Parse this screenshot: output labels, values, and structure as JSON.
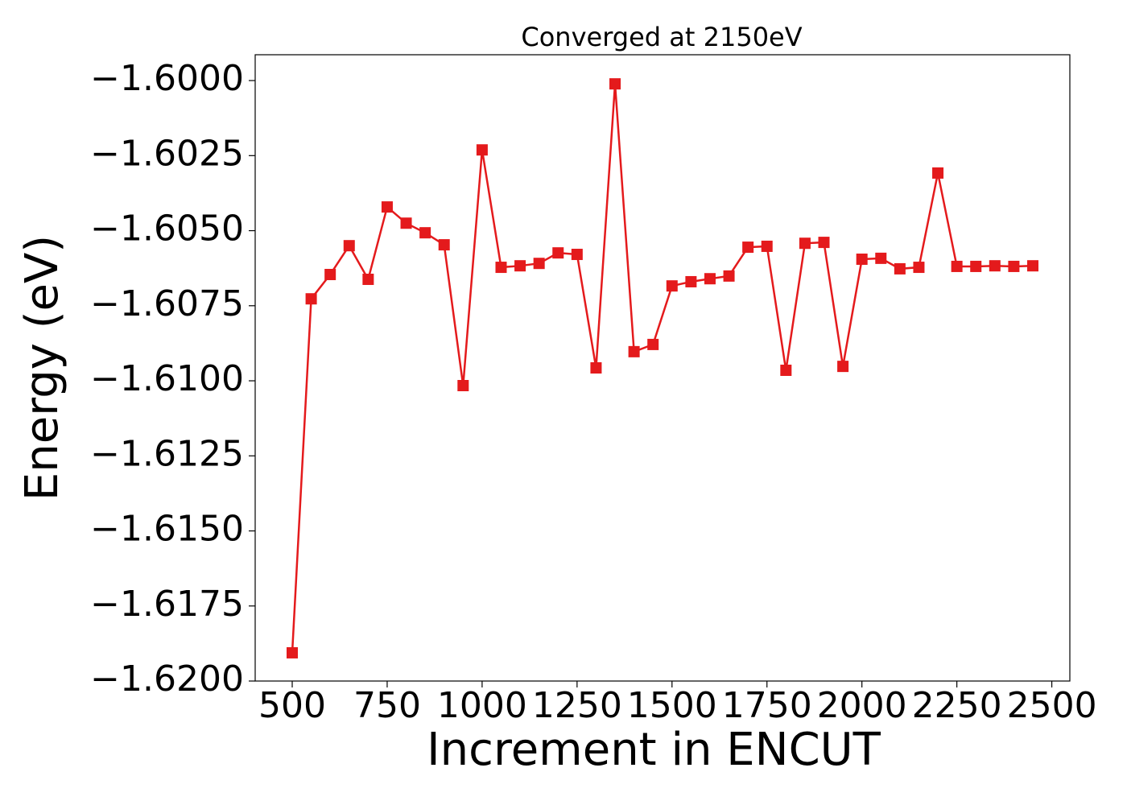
{
  "chart_data": {
    "type": "line",
    "title": "Converged at 2150eV",
    "x_label": "Increment in ENCUT",
    "y_label": "Energy (eV)",
    "x": [
      500,
      550,
      600,
      650,
      700,
      750,
      800,
      850,
      900,
      950,
      1000,
      1050,
      1100,
      1150,
      1200,
      1250,
      1300,
      1350,
      1400,
      1450,
      1500,
      1550,
      1600,
      1650,
      1700,
      1750,
      1800,
      1850,
      1900,
      1950,
      2000,
      2050,
      2100,
      2150,
      2200,
      2250,
      2300,
      2350,
      2400,
      2450
    ],
    "series": [
      {
        "name": "Energy",
        "color": "#e41a1c",
        "marker": "square",
        "values": [
          -1.61906,
          -1.60727,
          -1.60646,
          -1.6055,
          -1.60662,
          -1.60421,
          -1.60475,
          -1.60507,
          -1.60547,
          -1.61016,
          -1.60231,
          -1.60622,
          -1.60617,
          -1.60609,
          -1.60574,
          -1.60579,
          -1.60957,
          -1.60011,
          -1.60903,
          -1.60879,
          -1.60684,
          -1.6067,
          -1.6066,
          -1.60651,
          -1.60555,
          -1.60552,
          -1.60965,
          -1.60542,
          -1.60539,
          -1.60952,
          -1.60595,
          -1.60592,
          -1.60627,
          -1.60622,
          -1.60308,
          -1.60619,
          -1.60619,
          -1.60617,
          -1.60619,
          -1.60617
        ]
      }
    ],
    "xlim": [
      402.5,
      2547.5
    ],
    "xticks": [
      500,
      750,
      1000,
      1250,
      1500,
      1750,
      2000,
      2250,
      2500
    ],
    "ylim": [
      -1.62,
      -1.59914
    ],
    "yticks": [
      {
        "value": -1.62,
        "label": "−1.6200"
      },
      {
        "value": -1.6175,
        "label": "−1.6175"
      },
      {
        "value": -1.615,
        "label": "−1.6150"
      },
      {
        "value": -1.6125,
        "label": "−1.6125"
      },
      {
        "value": -1.61,
        "label": "−1.6100"
      },
      {
        "value": -1.6075,
        "label": "−1.6075"
      },
      {
        "value": -1.605,
        "label": "−1.6050"
      },
      {
        "value": -1.6025,
        "label": "−1.6025"
      },
      {
        "value": -1.6,
        "label": "−1.6000"
      }
    ]
  }
}
